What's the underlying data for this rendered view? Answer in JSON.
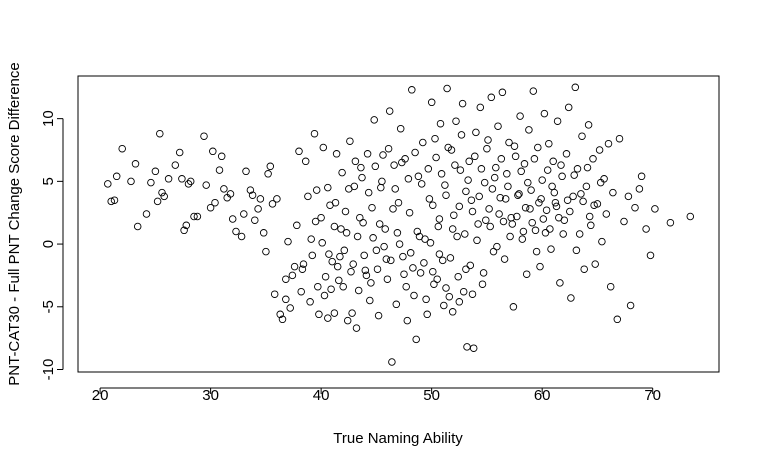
{
  "chart_data": {
    "type": "scatter",
    "title": "",
    "xlabel": "True Naming Ability",
    "ylabel": "PNT-CAT30 - Full PNT Change Score Difference",
    "xlim": [
      18,
      76
    ],
    "ylim": [
      -10.2,
      13.4
    ],
    "xticks": [
      20,
      30,
      40,
      50,
      60,
      70
    ],
    "yticks": [
      -10,
      -5,
      0,
      5,
      10
    ],
    "grid": false,
    "legend": "none",
    "marker": "open-circle",
    "points": [
      [
        20.7,
        4.8
      ],
      [
        21.0,
        3.4
      ],
      [
        21.3,
        3.5
      ],
      [
        21.5,
        5.4
      ],
      [
        22.0,
        7.6
      ],
      [
        22.8,
        5.0
      ],
      [
        23.2,
        6.4
      ],
      [
        23.4,
        1.4
      ],
      [
        24.2,
        2.4
      ],
      [
        24.6,
        4.9
      ],
      [
        25.0,
        5.8
      ],
      [
        25.2,
        3.4
      ],
      [
        25.4,
        8.8
      ],
      [
        25.6,
        4.1
      ],
      [
        25.8,
        3.8
      ],
      [
        26.2,
        5.2
      ],
      [
        26.8,
        6.3
      ],
      [
        27.2,
        7.3
      ],
      [
        27.4,
        5.2
      ],
      [
        27.6,
        1.1
      ],
      [
        27.8,
        1.5
      ],
      [
        28.0,
        4.8
      ],
      [
        28.2,
        5.0
      ],
      [
        28.5,
        2.2
      ],
      [
        28.8,
        2.2
      ],
      [
        29.4,
        8.6
      ],
      [
        29.6,
        4.7
      ],
      [
        30.0,
        2.9
      ],
      [
        30.2,
        7.4
      ],
      [
        30.4,
        3.3
      ],
      [
        30.8,
        5.9
      ],
      [
        31.0,
        7.0
      ],
      [
        31.2,
        4.4
      ],
      [
        31.5,
        3.7
      ],
      [
        31.8,
        4.0
      ],
      [
        32.0,
        2.0
      ],
      [
        32.3,
        1.0
      ],
      [
        32.8,
        0.6
      ],
      [
        33.0,
        2.4
      ],
      [
        33.2,
        5.8
      ],
      [
        33.6,
        4.3
      ],
      [
        33.8,
        3.9
      ],
      [
        34.0,
        1.9
      ],
      [
        34.3,
        2.8
      ],
      [
        34.5,
        3.6
      ],
      [
        34.8,
        0.9
      ],
      [
        35.0,
        -0.6
      ],
      [
        35.2,
        5.6
      ],
      [
        35.4,
        6.2
      ],
      [
        35.6,
        3.2
      ],
      [
        35.8,
        -4.0
      ],
      [
        36.0,
        3.6
      ],
      [
        36.3,
        -5.6
      ],
      [
        36.5,
        -6.0
      ],
      [
        36.8,
        -4.4
      ],
      [
        37.0,
        0.2
      ],
      [
        37.2,
        -5.1
      ],
      [
        37.4,
        -2.5
      ],
      [
        37.8,
        1.5
      ],
      [
        38.0,
        7.4
      ],
      [
        38.2,
        -3.8
      ],
      [
        38.4,
        -1.6
      ],
      [
        38.6,
        6.6
      ],
      [
        38.8,
        3.8
      ],
      [
        39.0,
        -4.6
      ],
      [
        39.2,
        -0.9
      ],
      [
        39.4,
        8.8
      ],
      [
        39.6,
        4.3
      ],
      [
        39.8,
        -5.6
      ],
      [
        40.0,
        2.1
      ],
      [
        40.2,
        7.7
      ],
      [
        40.4,
        -2.6
      ],
      [
        40.6,
        -5.9
      ],
      [
        40.8,
        3.1
      ],
      [
        41.0,
        -1.4
      ],
      [
        41.2,
        -5.5
      ],
      [
        41.4,
        7.2
      ],
      [
        41.6,
        -2.9
      ],
      [
        41.8,
        1.2
      ],
      [
        42.0,
        -3.4
      ],
      [
        42.2,
        2.6
      ],
      [
        42.4,
        -6.1
      ],
      [
        42.6,
        8.2
      ],
      [
        42.8,
        -5.5
      ],
      [
        43.0,
        4.6
      ],
      [
        43.2,
        -6.7
      ],
      [
        43.4,
        -3.7
      ],
      [
        43.6,
        6.1
      ],
      [
        43.8,
        1.7
      ],
      [
        44.0,
        -2.1
      ],
      [
        44.2,
        7.2
      ],
      [
        44.4,
        -4.5
      ],
      [
        44.6,
        2.9
      ],
      [
        44.8,
        9.9
      ],
      [
        45.0,
        -0.5
      ],
      [
        45.2,
        -5.7
      ],
      [
        45.4,
        4.5
      ],
      [
        45.6,
        7.1
      ],
      [
        45.8,
        1.2
      ],
      [
        46.0,
        -2.8
      ],
      [
        46.2,
        10.6
      ],
      [
        46.4,
        -9.4
      ],
      [
        46.6,
        6.3
      ],
      [
        46.8,
        -4.8
      ],
      [
        47.0,
        3.3
      ],
      [
        47.2,
        9.2
      ],
      [
        47.4,
        -1.0
      ],
      [
        47.6,
        6.8
      ],
      [
        47.8,
        -6.1
      ],
      [
        48.0,
        2.5
      ],
      [
        48.2,
        12.3
      ],
      [
        48.4,
        -4.1
      ],
      [
        48.6,
        -7.6
      ],
      [
        48.8,
        5.4
      ],
      [
        49.0,
        -2.3
      ],
      [
        49.2,
        8.1
      ],
      [
        49.4,
        0.4
      ],
      [
        49.6,
        -5.6
      ],
      [
        49.8,
        3.6
      ],
      [
        50.0,
        11.3
      ],
      [
        50.2,
        -3.2
      ],
      [
        50.4,
        6.9
      ],
      [
        50.6,
        1.4
      ],
      [
        50.8,
        9.6
      ],
      [
        51.0,
        -1.3
      ],
      [
        51.2,
        4.7
      ],
      [
        51.4,
        12.4
      ],
      [
        51.6,
        -4.2
      ],
      [
        51.8,
        7.5
      ],
      [
        52.0,
        2.3
      ],
      [
        52.2,
        9.8
      ],
      [
        52.4,
        -2.6
      ],
      [
        52.6,
        5.9
      ],
      [
        52.8,
        11.2
      ],
      [
        53.0,
        0.8
      ],
      [
        53.2,
        -8.2
      ],
      [
        53.4,
        6.6
      ],
      [
        53.6,
        3.5
      ],
      [
        53.8,
        -8.3
      ],
      [
        54.0,
        8.9
      ],
      [
        54.2,
        1.6
      ],
      [
        54.4,
        10.9
      ],
      [
        54.6,
        -3.2
      ],
      [
        54.8,
        4.9
      ],
      [
        55.0,
        7.6
      ],
      [
        55.2,
        2.8
      ],
      [
        55.4,
        11.7
      ],
      [
        55.6,
        -0.6
      ],
      [
        55.8,
        6.1
      ],
      [
        56.0,
        9.4
      ],
      [
        56.2,
        3.7
      ],
      [
        56.4,
        12.1
      ],
      [
        56.6,
        -1.2
      ],
      [
        56.8,
        5.6
      ],
      [
        57.0,
        8.1
      ],
      [
        57.2,
        2.1
      ],
      [
        57.4,
        -5.0
      ],
      [
        57.6,
        7.0
      ],
      [
        57.8,
        3.9
      ],
      [
        58.0,
        10.2
      ],
      [
        58.2,
        0.4
      ],
      [
        58.4,
        6.4
      ],
      [
        58.6,
        -2.4
      ],
      [
        58.8,
        9.1
      ],
      [
        59.0,
        4.3
      ],
      [
        59.2,
        12.2
      ],
      [
        59.4,
        1.1
      ],
      [
        59.6,
        7.7
      ],
      [
        59.8,
        -1.8
      ],
      [
        60.0,
        5.1
      ],
      [
        60.2,
        10.4
      ],
      [
        60.4,
        2.7
      ],
      [
        60.6,
        8.0
      ],
      [
        60.8,
        -0.4
      ],
      [
        61.0,
        6.6
      ],
      [
        61.2,
        3.3
      ],
      [
        61.4,
        9.8
      ],
      [
        61.6,
        -3.1
      ],
      [
        61.8,
        5.4
      ],
      [
        62.0,
        1.9
      ],
      [
        62.2,
        7.2
      ],
      [
        62.4,
        10.9
      ],
      [
        62.6,
        -4.3
      ],
      [
        62.8,
        3.8
      ],
      [
        63.0,
        12.5
      ],
      [
        63.2,
        6.0
      ],
      [
        63.4,
        0.8
      ],
      [
        63.6,
        8.6
      ],
      [
        63.8,
        -2.0
      ],
      [
        64.0,
        4.6
      ],
      [
        64.2,
        9.5
      ],
      [
        64.4,
        1.5
      ],
      [
        64.6,
        6.8
      ],
      [
        64.8,
        -1.6
      ],
      [
        65.0,
        3.2
      ],
      [
        65.2,
        7.5
      ],
      [
        65.4,
        0.2
      ],
      [
        65.6,
        5.2
      ],
      [
        65.8,
        2.4
      ],
      [
        66.0,
        8.0
      ],
      [
        66.2,
        -3.4
      ],
      [
        66.4,
        4.1
      ],
      [
        66.8,
        -6.0
      ],
      [
        67.0,
        8.4
      ],
      [
        67.4,
        1.8
      ],
      [
        67.8,
        3.8
      ],
      [
        68.0,
        -4.9
      ],
      [
        68.4,
        2.9
      ],
      [
        68.8,
        4.4
      ],
      [
        69.0,
        5.4
      ],
      [
        69.4,
        1.2
      ],
      [
        69.8,
        -0.9
      ],
      [
        70.2,
        2.8
      ],
      [
        71.6,
        1.7
      ],
      [
        73.4,
        2.2
      ],
      [
        36.8,
        -2.8
      ],
      [
        37.6,
        -1.8
      ],
      [
        38.3,
        -2.0
      ],
      [
        39.1,
        0.4
      ],
      [
        39.7,
        -3.4
      ],
      [
        40.3,
        -4.1
      ],
      [
        40.9,
        -3.6
      ],
      [
        41.5,
        -1.8
      ],
      [
        42.1,
        -0.5
      ],
      [
        42.7,
        -2.2
      ],
      [
        43.3,
        0.6
      ],
      [
        43.9,
        -0.9
      ],
      [
        44.5,
        -3.1
      ],
      [
        45.1,
        -2.0
      ],
      [
        45.7,
        -0.2
      ],
      [
        46.3,
        -1.3
      ],
      [
        46.9,
        0.9
      ],
      [
        47.5,
        -2.4
      ],
      [
        48.1,
        -0.7
      ],
      [
        48.7,
        1.0
      ],
      [
        49.3,
        -1.5
      ],
      [
        49.9,
        0.1
      ],
      [
        50.5,
        -2.8
      ],
      [
        51.1,
        -4.9
      ],
      [
        51.7,
        -1.1
      ],
      [
        52.3,
        0.6
      ],
      [
        52.9,
        -3.8
      ],
      [
        53.5,
        -1.7
      ],
      [
        54.1,
        0.3
      ],
      [
        54.7,
        -2.3
      ],
      [
        55.3,
        1.4
      ],
      [
        55.9,
        -0.2
      ],
      [
        56.5,
        1.8
      ],
      [
        57.1,
        0.6
      ],
      [
        57.7,
        2.2
      ],
      [
        58.3,
        1.0
      ],
      [
        58.9,
        2.8
      ],
      [
        59.5,
        -0.6
      ],
      [
        60.1,
        2.0
      ],
      [
        60.7,
        1.2
      ],
      [
        61.3,
        3.0
      ],
      [
        61.9,
        0.8
      ],
      [
        62.5,
        2.6
      ],
      [
        63.1,
        -0.5
      ],
      [
        63.7,
        3.4
      ],
      [
        64.3,
        2.2
      ],
      [
        40.6,
        4.5
      ],
      [
        41.3,
        3.3
      ],
      [
        41.9,
        5.7
      ],
      [
        42.5,
        4.4
      ],
      [
        43.1,
        6.6
      ],
      [
        43.7,
        5.3
      ],
      [
        44.3,
        4.1
      ],
      [
        44.9,
        6.2
      ],
      [
        45.5,
        5.0
      ],
      [
        46.1,
        7.6
      ],
      [
        46.7,
        4.4
      ],
      [
        47.3,
        6.5
      ],
      [
        47.9,
        5.2
      ],
      [
        48.5,
        7.3
      ],
      [
        49.1,
        4.8
      ],
      [
        49.7,
        6.0
      ],
      [
        50.3,
        8.4
      ],
      [
        50.9,
        5.6
      ],
      [
        51.5,
        7.7
      ],
      [
        52.1,
        6.3
      ],
      [
        52.7,
        8.7
      ],
      [
        53.3,
        5.1
      ],
      [
        53.9,
        7.0
      ],
      [
        54.5,
        6.0
      ],
      [
        55.1,
        8.3
      ],
      [
        55.7,
        5.3
      ],
      [
        56.3,
        6.8
      ],
      [
        56.9,
        4.6
      ],
      [
        57.5,
        7.8
      ],
      [
        58.1,
        5.8
      ],
      [
        58.7,
        4.9
      ],
      [
        59.3,
        6.8
      ],
      [
        59.9,
        3.6
      ],
      [
        60.5,
        5.9
      ],
      [
        61.1,
        4.1
      ],
      [
        61.7,
        6.3
      ],
      [
        62.3,
        3.5
      ],
      [
        62.9,
        5.5
      ],
      [
        63.5,
        4.0
      ],
      [
        64.1,
        6.1
      ],
      [
        64.7,
        3.1
      ],
      [
        65.3,
        4.9
      ],
      [
        50.1,
        3.1
      ],
      [
        50.7,
        2.0
      ],
      [
        51.3,
        3.9
      ],
      [
        51.9,
        1.2
      ],
      [
        52.5,
        3.0
      ],
      [
        53.1,
        4.2
      ],
      [
        53.7,
        2.6
      ],
      [
        54.3,
        3.8
      ],
      [
        54.9,
        1.9
      ],
      [
        55.5,
        4.4
      ],
      [
        56.1,
        2.4
      ],
      [
        56.7,
        3.6
      ],
      [
        57.3,
        1.6
      ],
      [
        57.9,
        4.0
      ],
      [
        58.5,
        2.9
      ],
      [
        59.1,
        1.7
      ],
      [
        59.7,
        3.3
      ],
      [
        60.3,
        0.9
      ],
      [
        60.9,
        4.6
      ],
      [
        61.5,
        2.1
      ],
      [
        39.5,
        1.8
      ],
      [
        40.1,
        0.1
      ],
      [
        40.7,
        -0.8
      ],
      [
        41.2,
        1.4
      ],
      [
        41.7,
        -1.0
      ],
      [
        42.3,
        0.9
      ],
      [
        42.9,
        -1.6
      ],
      [
        43.5,
        2.1
      ],
      [
        44.1,
        -2.5
      ],
      [
        44.7,
        0.5
      ],
      [
        45.3,
        1.6
      ],
      [
        45.9,
        -1.2
      ],
      [
        46.5,
        2.8
      ],
      [
        47.1,
        0.0
      ],
      [
        47.7,
        -3.4
      ],
      [
        48.3,
        -1.9
      ],
      [
        48.9,
        0.6
      ],
      [
        49.5,
        -4.4
      ],
      [
        50.1,
        -2.2
      ],
      [
        50.7,
        -0.8
      ],
      [
        51.3,
        -3.5
      ],
      [
        51.9,
        -5.4
      ],
      [
        52.5,
        -4.6
      ],
      [
        53.1,
        -2.0
      ],
      [
        53.7,
        -4.0
      ]
    ]
  }
}
